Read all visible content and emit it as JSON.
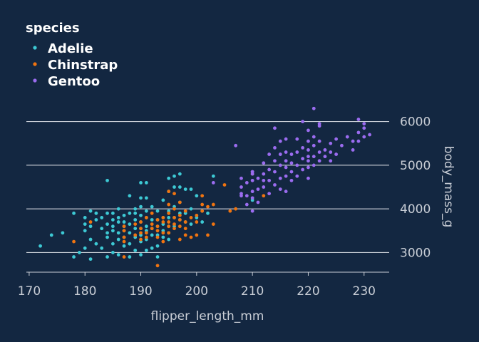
{
  "chart_data": {
    "type": "scatter",
    "title": "",
    "xlabel": "flipper_length_mm",
    "ylabel": "body_mass_g",
    "xlim": [
      169.5,
      234.5
    ],
    "ylim": [
      2550,
      6500
    ],
    "x_ticks": [
      170,
      180,
      190,
      200,
      210,
      220,
      230
    ],
    "y_ticks": [
      3000,
      4000,
      5000,
      6000
    ],
    "y_axis_position": "right",
    "grid": "horizontal",
    "legend": {
      "title": "species",
      "placement": "top-left"
    },
    "series": [
      {
        "name": "Adelie",
        "color": "#3dc9d4",
        "points": [
          [
            172,
            3150
          ],
          [
            174,
            3400
          ],
          [
            176,
            3450
          ],
          [
            178,
            2900
          ],
          [
            178,
            3900
          ],
          [
            179,
            3000
          ],
          [
            180,
            3100
          ],
          [
            180,
            3500
          ],
          [
            180,
            3650
          ],
          [
            180,
            3800
          ],
          [
            181,
            2850
          ],
          [
            181,
            3300
          ],
          [
            181,
            3600
          ],
          [
            181,
            3950
          ],
          [
            182,
            3200
          ],
          [
            182,
            3750
          ],
          [
            182,
            3900
          ],
          [
            183,
            3100
          ],
          [
            183,
            3550
          ],
          [
            183,
            3800
          ],
          [
            184,
            2900
          ],
          [
            184,
            3350
          ],
          [
            184,
            3450
          ],
          [
            184,
            3650
          ],
          [
            184,
            3900
          ],
          [
            184,
            4650
          ],
          [
            185,
            3000
          ],
          [
            185,
            3200
          ],
          [
            185,
            3500
          ],
          [
            185,
            3600
          ],
          [
            185,
            3750
          ],
          [
            185,
            3900
          ],
          [
            186,
            2950
          ],
          [
            186,
            3300
          ],
          [
            186,
            3450
          ],
          [
            186,
            3700
          ],
          [
            186,
            3800
          ],
          [
            186,
            4000
          ],
          [
            187,
            3150
          ],
          [
            187,
            3350
          ],
          [
            187,
            3500
          ],
          [
            187,
            3600
          ],
          [
            187,
            3700
          ],
          [
            187,
            3850
          ],
          [
            188,
            2900
          ],
          [
            188,
            3200
          ],
          [
            188,
            3450
          ],
          [
            188,
            3650
          ],
          [
            188,
            3900
          ],
          [
            188,
            4300
          ],
          [
            189,
            3050
          ],
          [
            189,
            3350
          ],
          [
            189,
            3550
          ],
          [
            189,
            3750
          ],
          [
            189,
            3900
          ],
          [
            189,
            4000
          ],
          [
            190,
            2950
          ],
          [
            190,
            3250
          ],
          [
            190,
            3400
          ],
          [
            190,
            3550
          ],
          [
            190,
            3700
          ],
          [
            190,
            3850
          ],
          [
            190,
            4050
          ],
          [
            190,
            4250
          ],
          [
            190,
            4600
          ],
          [
            191,
            3050
          ],
          [
            191,
            3300
          ],
          [
            191,
            3500
          ],
          [
            191,
            3600
          ],
          [
            191,
            3800
          ],
          [
            191,
            3950
          ],
          [
            191,
            4250
          ],
          [
            191,
            4600
          ],
          [
            192,
            3100
          ],
          [
            192,
            3400
          ],
          [
            192,
            3550
          ],
          [
            192,
            3750
          ],
          [
            192,
            4050
          ],
          [
            193,
            2900
          ],
          [
            193,
            3150
          ],
          [
            193,
            3400
          ],
          [
            193,
            3600
          ],
          [
            193,
            3750
          ],
          [
            193,
            3950
          ],
          [
            194,
            3350
          ],
          [
            194,
            3500
          ],
          [
            194,
            3650
          ],
          [
            194,
            3800
          ],
          [
            194,
            4200
          ],
          [
            195,
            3300
          ],
          [
            195,
            3450
          ],
          [
            195,
            3600
          ],
          [
            195,
            3800
          ],
          [
            195,
            3950
          ],
          [
            195,
            4400
          ],
          [
            195,
            4700
          ],
          [
            196,
            3600
          ],
          [
            196,
            3800
          ],
          [
            196,
            4050
          ],
          [
            196,
            4500
          ],
          [
            196,
            4750
          ],
          [
            197,
            3750
          ],
          [
            197,
            3900
          ],
          [
            197,
            4150
          ],
          [
            197,
            4500
          ],
          [
            197,
            4800
          ],
          [
            198,
            3700
          ],
          [
            198,
            3900
          ],
          [
            198,
            4450
          ],
          [
            199,
            3650
          ],
          [
            199,
            4000
          ],
          [
            199,
            4450
          ],
          [
            200,
            3800
          ],
          [
            200,
            4300
          ],
          [
            201,
            3700
          ],
          [
            201,
            3950
          ],
          [
            202,
            3900
          ],
          [
            203,
            4750
          ],
          [
            210,
            4200
          ]
        ]
      },
      {
        "name": "Chinstrap",
        "color": "#f07410",
        "points": [
          [
            178,
            3250
          ],
          [
            181,
            3700
          ],
          [
            187,
            2900
          ],
          [
            187,
            3250
          ],
          [
            187,
            3350
          ],
          [
            187,
            3500
          ],
          [
            187,
            3600
          ],
          [
            189,
            3400
          ],
          [
            189,
            3650
          ],
          [
            190,
            3300
          ],
          [
            190,
            3450
          ],
          [
            190,
            3550
          ],
          [
            190,
            3700
          ],
          [
            191,
            3350
          ],
          [
            191,
            3450
          ],
          [
            191,
            3800
          ],
          [
            192,
            3550
          ],
          [
            192,
            3650
          ],
          [
            192,
            3900
          ],
          [
            193,
            2700
          ],
          [
            193,
            3350
          ],
          [
            193,
            3500
          ],
          [
            193,
            3600
          ],
          [
            193,
            3750
          ],
          [
            194,
            3250
          ],
          [
            194,
            3450
          ],
          [
            194,
            3700
          ],
          [
            194,
            3800
          ],
          [
            195,
            3450
          ],
          [
            195,
            3600
          ],
          [
            195,
            3700
          ],
          [
            195,
            3900
          ],
          [
            195,
            4100
          ],
          [
            195,
            4400
          ],
          [
            196,
            3550
          ],
          [
            196,
            3650
          ],
          [
            196,
            3800
          ],
          [
            196,
            4000
          ],
          [
            196,
            4350
          ],
          [
            197,
            3300
          ],
          [
            197,
            3600
          ],
          [
            197,
            3750
          ],
          [
            197,
            3850
          ],
          [
            197,
            4150
          ],
          [
            198,
            3400
          ],
          [
            198,
            3550
          ],
          [
            198,
            3700
          ],
          [
            198,
            3950
          ],
          [
            199,
            3350
          ],
          [
            199,
            3800
          ],
          [
            200,
            3400
          ],
          [
            200,
            3700
          ],
          [
            200,
            3850
          ],
          [
            201,
            3950
          ],
          [
            201,
            4100
          ],
          [
            201,
            4300
          ],
          [
            202,
            3400
          ],
          [
            202,
            4050
          ],
          [
            203,
            3650
          ],
          [
            203,
            4100
          ],
          [
            205,
            4550
          ],
          [
            206,
            3950
          ],
          [
            207,
            4000
          ],
          [
            210,
            4800
          ],
          [
            212,
            4300
          ]
        ]
      },
      {
        "name": "Gentoo",
        "color": "#9b6cf0",
        "points": [
          [
            203,
            4600
          ],
          [
            208,
            4300
          ],
          [
            208,
            4500
          ],
          [
            208,
            4700
          ],
          [
            209,
            4100
          ],
          [
            209,
            4300
          ],
          [
            209,
            4600
          ],
          [
            210,
            3950
          ],
          [
            210,
            4250
          ],
          [
            210,
            4400
          ],
          [
            210,
            4650
          ],
          [
            210,
            4800
          ],
          [
            210,
            4850
          ],
          [
            211,
            4150
          ],
          [
            211,
            4450
          ],
          [
            211,
            4700
          ],
          [
            212,
            4500
          ],
          [
            212,
            4800
          ],
          [
            212,
            5050
          ],
          [
            213,
            4350
          ],
          [
            213,
            4650
          ],
          [
            213,
            4900
          ],
          [
            213,
            5250
          ],
          [
            214,
            4550
          ],
          [
            214,
            4850
          ],
          [
            214,
            5100
          ],
          [
            214,
            5400
          ],
          [
            215,
            4700
          ],
          [
            215,
            5000
          ],
          [
            215,
            5250
          ],
          [
            215,
            5550
          ],
          [
            216,
            4400
          ],
          [
            216,
            4750
          ],
          [
            216,
            4950
          ],
          [
            216,
            5100
          ],
          [
            216,
            5300
          ],
          [
            216,
            5600
          ],
          [
            217,
            4650
          ],
          [
            217,
            4850
          ],
          [
            217,
            5050
          ],
          [
            217,
            5250
          ],
          [
            218,
            4750
          ],
          [
            218,
            5000
          ],
          [
            218,
            5300
          ],
          [
            218,
            5600
          ],
          [
            219,
            4900
          ],
          [
            219,
            5150
          ],
          [
            219,
            5400
          ],
          [
            220,
            4950
          ],
          [
            220,
            5100
          ],
          [
            220,
            5200
          ],
          [
            220,
            5350
          ],
          [
            220,
            5550
          ],
          [
            220,
            5800
          ],
          [
            221,
            5000
          ],
          [
            221,
            5200
          ],
          [
            221,
            5450
          ],
          [
            221,
            5650
          ],
          [
            222,
            5100
          ],
          [
            222,
            5300
          ],
          [
            222,
            5550
          ],
          [
            222,
            5900
          ],
          [
            223,
            5200
          ],
          [
            223,
            5350
          ],
          [
            224,
            5100
          ],
          [
            224,
            5300
          ],
          [
            224,
            5500
          ],
          [
            225,
            5250
          ],
          [
            225,
            5600
          ],
          [
            226,
            5450
          ],
          [
            227,
            5650
          ],
          [
            228,
            5350
          ],
          [
            228,
            5550
          ],
          [
            229,
            5550
          ],
          [
            229,
            5750
          ],
          [
            230,
            5650
          ],
          [
            230,
            5950
          ],
          [
            231,
            5700
          ],
          [
            207,
            5450
          ],
          [
            214,
            5850
          ],
          [
            219,
            6000
          ],
          [
            221,
            6300
          ],
          [
            222,
            5950
          ],
          [
            229,
            6050
          ],
          [
            230,
            5850
          ],
          [
            210,
            4850
          ],
          [
            212,
            4650
          ],
          [
            215,
            4450
          ],
          [
            220,
            4700
          ],
          [
            208,
            4350
          ]
        ]
      }
    ]
  }
}
